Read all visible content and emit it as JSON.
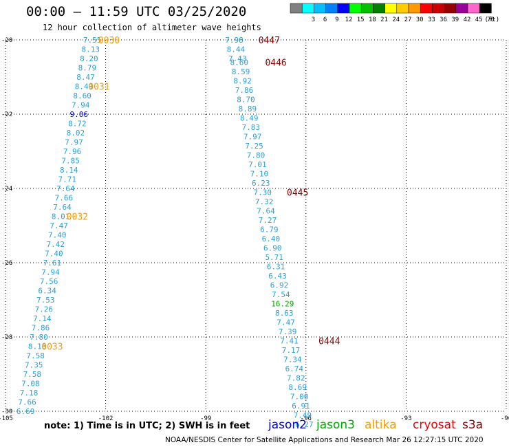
{
  "title": "00:00 – 11:59 UTC 03/25/2020",
  "subtitle": "12 hour collection of altimeter wave heights",
  "note": "note:  1) Time is in UTC;  2) SWH is in feet",
  "credit": "NOAA/NESDIS Center for Satellite Applications and Research     Mar 26 12:27:15 UTC 2020",
  "legend": {
    "unit": "(ft)",
    "bins": [
      {
        "label": "",
        "color": "#808080"
      },
      {
        "label": "3",
        "color": "#00ffff"
      },
      {
        "label": "6",
        "color": "#00c0ff"
      },
      {
        "label": "9",
        "color": "#0080ff"
      },
      {
        "label": "12",
        "color": "#0000ff"
      },
      {
        "label": "15",
        "color": "#00ff00"
      },
      {
        "label": "18",
        "color": "#00c000"
      },
      {
        "label": "21",
        "color": "#008000"
      },
      {
        "label": "24",
        "color": "#ffff00"
      },
      {
        "label": "27",
        "color": "#ffcc00"
      },
      {
        "label": "30",
        "color": "#ff9900"
      },
      {
        "label": "33",
        "color": "#ff0000"
      },
      {
        "label": "36",
        "color": "#cc0000"
      },
      {
        "label": "39",
        "color": "#990000"
      },
      {
        "label": "42",
        "color": "#990099"
      },
      {
        "label": "45",
        "color": "#ff66cc"
      },
      {
        "label": "70",
        "color": "#000000"
      }
    ]
  },
  "satellites": [
    {
      "name": "jason2",
      "color": "#0000cc"
    },
    {
      "name": "jason3",
      "color": "#00aa00"
    },
    {
      "name": "altika",
      "color": "#ff9900"
    },
    {
      "name": "cryosat",
      "color": "#ee0000"
    },
    {
      "name": "s3a",
      "color": "#880000"
    }
  ],
  "chart_data": {
    "type": "scatter",
    "xlim": [
      -105,
      -90
    ],
    "ylim": [
      -30,
      -20
    ],
    "xticks": [
      -105,
      -102,
      -99,
      -96,
      -93,
      -90
    ],
    "xtick_labels": [
      "-105",
      "-102",
      "-99",
      "-96",
      "-93",
      "-90"
    ],
    "yticks": [
      -20,
      -22,
      -24,
      -26,
      -28,
      -30
    ],
    "ytick_labels": [
      "-20",
      "-22",
      "-24",
      "-26",
      "-28",
      "-30"
    ],
    "grid": true,
    "tracks": [
      {
        "satellite": "altika",
        "color": "#2a9fd8",
        "points": [
          {
            "lon": -102.4,
            "lat": -20.0,
            "v": "7.55"
          },
          {
            "lon": -102.45,
            "lat": -20.25,
            "v": "8.13"
          },
          {
            "lon": -102.5,
            "lat": -20.5,
            "v": "8.20"
          },
          {
            "lon": -102.55,
            "lat": -20.75,
            "v": "8.79"
          },
          {
            "lon": -102.6,
            "lat": -21.0,
            "v": "8.47"
          },
          {
            "lon": -102.65,
            "lat": -21.25,
            "v": "8.49"
          },
          {
            "lon": -102.7,
            "lat": -21.5,
            "v": "8.60"
          },
          {
            "lon": -102.75,
            "lat": -21.75,
            "v": "7.94"
          },
          {
            "lon": -102.8,
            "lat": -22.0,
            "v": "9.06",
            "color": "#0000cc"
          },
          {
            "lon": -102.85,
            "lat": -22.25,
            "v": "8.72"
          },
          {
            "lon": -102.9,
            "lat": -22.5,
            "v": "8.02"
          },
          {
            "lon": -102.95,
            "lat": -22.75,
            "v": "7.97"
          },
          {
            "lon": -103.0,
            "lat": -23.0,
            "v": "7.96"
          },
          {
            "lon": -103.05,
            "lat": -23.25,
            "v": "7.85"
          },
          {
            "lon": -103.1,
            "lat": -23.5,
            "v": "8.14"
          },
          {
            "lon": -103.15,
            "lat": -23.75,
            "v": "7.71"
          },
          {
            "lon": -103.2,
            "lat": -24.0,
            "v": "7.64"
          },
          {
            "lon": -103.25,
            "lat": -24.25,
            "v": "7.66"
          },
          {
            "lon": -103.3,
            "lat": -24.5,
            "v": "7.64"
          },
          {
            "lon": -103.35,
            "lat": -24.75,
            "v": "8.01"
          },
          {
            "lon": -103.4,
            "lat": -25.0,
            "v": "7.47"
          },
          {
            "lon": -103.45,
            "lat": -25.25,
            "v": "7.40"
          },
          {
            "lon": -103.5,
            "lat": -25.5,
            "v": "7.42"
          },
          {
            "lon": -103.55,
            "lat": -25.75,
            "v": "7.40"
          },
          {
            "lon": -103.6,
            "lat": -26.0,
            "v": "7.61"
          },
          {
            "lon": -103.65,
            "lat": -26.25,
            "v": "7.94"
          },
          {
            "lon": -103.7,
            "lat": -26.5,
            "v": "7.56"
          },
          {
            "lon": -103.75,
            "lat": -26.75,
            "v": "6.34"
          },
          {
            "lon": -103.8,
            "lat": -27.0,
            "v": "7.53"
          },
          {
            "lon": -103.85,
            "lat": -27.25,
            "v": "7.26"
          },
          {
            "lon": -103.9,
            "lat": -27.5,
            "v": "7.14"
          },
          {
            "lon": -103.95,
            "lat": -27.75,
            "v": "7.86"
          },
          {
            "lon": -104.0,
            "lat": -28.0,
            "v": "7.80"
          },
          {
            "lon": -104.05,
            "lat": -28.25,
            "v": "8.16"
          },
          {
            "lon": -104.1,
            "lat": -28.5,
            "v": "7.58"
          },
          {
            "lon": -104.15,
            "lat": -28.75,
            "v": "7.35"
          },
          {
            "lon": -104.2,
            "lat": -29.0,
            "v": "7.58"
          },
          {
            "lon": -104.25,
            "lat": -29.25,
            "v": "7.08"
          },
          {
            "lon": -104.3,
            "lat": -29.5,
            "v": "7.18"
          },
          {
            "lon": -104.35,
            "lat": -29.75,
            "v": "7.66"
          },
          {
            "lon": -104.4,
            "lat": -30.0,
            "v": "6.69"
          }
        ],
        "time_labels": [
          {
            "lon": -101.9,
            "lat": -20.0,
            "t": "0030"
          },
          {
            "lon": -102.2,
            "lat": -21.25,
            "t": "0031"
          },
          {
            "lon": -102.85,
            "lat": -24.75,
            "t": "0032"
          },
          {
            "lon": -103.6,
            "lat": -28.25,
            "t": "0033"
          }
        ],
        "time_color": "#ff9900"
      },
      {
        "satellite": "s3a",
        "color": "#2a9fd8",
        "points": [
          {
            "lon": -98.15,
            "lat": -20.0,
            "v": "7.98"
          },
          {
            "lon": -98.1,
            "lat": -20.25,
            "v": "8.44"
          },
          {
            "lon": -98.05,
            "lat": -20.5,
            "v": "7.43"
          },
          {
            "lon": -98.0,
            "lat": -20.6,
            "v": "8.60"
          },
          {
            "lon": -97.95,
            "lat": -20.85,
            "v": "8.59"
          },
          {
            "lon": -97.9,
            "lat": -21.1,
            "v": "8.92"
          },
          {
            "lon": -97.85,
            "lat": -21.35,
            "v": "7.86"
          },
          {
            "lon": -97.8,
            "lat": -21.6,
            "v": "8.70"
          },
          {
            "lon": -97.75,
            "lat": -21.85,
            "v": "8.89"
          },
          {
            "lon": -97.7,
            "lat": -22.1,
            "v": "8.49"
          },
          {
            "lon": -97.65,
            "lat": -22.35,
            "v": "7.83"
          },
          {
            "lon": -97.6,
            "lat": -22.6,
            "v": "7.97"
          },
          {
            "lon": -97.55,
            "lat": -22.85,
            "v": "7.25"
          },
          {
            "lon": -97.5,
            "lat": -23.1,
            "v": "7.80"
          },
          {
            "lon": -97.45,
            "lat": -23.35,
            "v": "7.01"
          },
          {
            "lon": -97.4,
            "lat": -23.6,
            "v": "7.10"
          },
          {
            "lon": -97.35,
            "lat": -23.85,
            "v": "6.23"
          },
          {
            "lon": -97.3,
            "lat": -24.1,
            "v": "7.30"
          },
          {
            "lon": -97.25,
            "lat": -24.35,
            "v": "7.32"
          },
          {
            "lon": -97.2,
            "lat": -24.6,
            "v": "7.64"
          },
          {
            "lon": -97.15,
            "lat": -24.85,
            "v": "7.27"
          },
          {
            "lon": -97.1,
            "lat": -25.1,
            "v": "6.79"
          },
          {
            "lon": -97.05,
            "lat": -25.35,
            "v": "6.40"
          },
          {
            "lon": -97.0,
            "lat": -25.6,
            "v": "6.90"
          },
          {
            "lon": -96.95,
            "lat": -25.85,
            "v": "5.71"
          },
          {
            "lon": -96.9,
            "lat": -26.1,
            "v": "6.31"
          },
          {
            "lon": -96.85,
            "lat": -26.35,
            "v": "6.43"
          },
          {
            "lon": -96.8,
            "lat": -26.6,
            "v": "6.92"
          },
          {
            "lon": -96.75,
            "lat": -26.85,
            "v": "7.54"
          },
          {
            "lon": -96.7,
            "lat": -27.1,
            "v": "16.29",
            "color": "#00aa00"
          },
          {
            "lon": -96.65,
            "lat": -27.35,
            "v": "8.63"
          },
          {
            "lon": -96.6,
            "lat": -27.6,
            "v": "7.47"
          },
          {
            "lon": -96.55,
            "lat": -27.85,
            "v": "7.39"
          },
          {
            "lon": -96.5,
            "lat": -28.1,
            "v": "7.41"
          },
          {
            "lon": -96.45,
            "lat": -28.35,
            "v": "7.17"
          },
          {
            "lon": -96.4,
            "lat": -28.6,
            "v": "7.34"
          },
          {
            "lon": -96.35,
            "lat": -28.85,
            "v": "6.74"
          },
          {
            "lon": -96.3,
            "lat": -29.1,
            "v": "7.82"
          },
          {
            "lon": -96.25,
            "lat": -29.35,
            "v": "8.69"
          },
          {
            "lon": -96.2,
            "lat": -29.6,
            "v": "7.00"
          },
          {
            "lon": -96.15,
            "lat": -29.85,
            "v": "6.91"
          },
          {
            "lon": -96.1,
            "lat": -30.1,
            "v": "7.49"
          },
          {
            "lon": -96.05,
            "lat": -30.35,
            "v": "6.27"
          }
        ],
        "time_labels": [
          {
            "lon": -97.1,
            "lat": -20.0,
            "t": "0447"
          },
          {
            "lon": -96.9,
            "lat": -20.6,
            "t": "0446"
          },
          {
            "lon": -96.25,
            "lat": -24.1,
            "t": "0445"
          },
          {
            "lon": -95.3,
            "lat": -28.1,
            "t": "0444"
          }
        ],
        "time_color": "#880000"
      }
    ]
  }
}
